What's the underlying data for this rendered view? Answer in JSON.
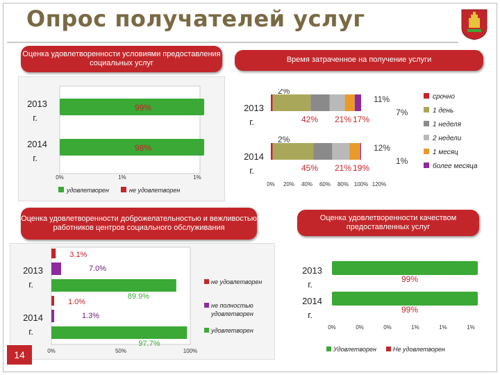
{
  "title": "Опрос получателей услуг",
  "page_number": "14",
  "colors": {
    "header": "#c3262a",
    "green": "#3aa935",
    "red": "#c3262a",
    "purple": "#8e2aa0",
    "gray": "#8a8a8a",
    "olive": "#a9a85a",
    "orange": "#e89a2a",
    "title": "#7a6a44"
  },
  "panels": {
    "conditions": {
      "header": "Оценка удовлетворенности условиями предоставления социальных услуг"
    },
    "time": {
      "header": "Время затраченное на получение услуги"
    },
    "politeness": {
      "header": "Оценка удовлетворенности доброжелательностью и вежливостью работников центров социального обслуживания"
    },
    "quality": {
      "header": "Оценка удовлетворенности качеством предоставленных услуг"
    }
  },
  "chart_data": [
    {
      "type": "bar",
      "orientation": "horizontal",
      "title": "Оценка удовлетворенности условиями предоставления социальных услуг",
      "categories": [
        "2013 г.",
        "2014 г."
      ],
      "series": [
        {
          "name": "удовлетворен",
          "color": "#3aa935",
          "values": [
            "99%",
            "98%"
          ]
        },
        {
          "name": "не удовлетворен",
          "color": "#c3262a",
          "values": [
            "",
            ""
          ]
        }
      ],
      "tick_labels": [
        "0%",
        "1%",
        "1%"
      ],
      "legend": [
        "удовлетворен",
        "не удовлетворен"
      ]
    },
    {
      "type": "bar",
      "orientation": "horizontal-stacked",
      "title": "Время затраченное на получение услуги",
      "categories": [
        "2013 г.",
        "2014 г."
      ],
      "series": [
        {
          "name": "срочно",
          "color": "#c3262a",
          "labels": [
            "2%",
            "2%"
          ]
        },
        {
          "name": "1 день",
          "color": "#a9a85a",
          "labels": [
            "42%",
            "45%"
          ]
        },
        {
          "name": "1 неделя",
          "color": "#8a8a8a",
          "labels": [
            "21%",
            "21%"
          ]
        },
        {
          "name": "2 недели",
          "color": "#b9b9b9",
          "labels": [
            "17%",
            "19%"
          ]
        },
        {
          "name": "1 месяц",
          "color": "#e89a2a",
          "labels": [
            "11%",
            "12%"
          ]
        },
        {
          "name": "более месяца",
          "color": "#8e2aa0",
          "labels": [
            "7%",
            "1%"
          ]
        }
      ],
      "values": [
        [
          2,
          42,
          21,
          17,
          11,
          7
        ],
        [
          2,
          45,
          21,
          19,
          12,
          1
        ]
      ],
      "tick_labels": [
        "0%",
        "20%",
        "40%",
        "60%",
        "80%",
        "100%",
        "120%"
      ],
      "legend": [
        "срочно",
        "1 день",
        "1 неделя",
        "2 недели",
        "1 месяц",
        "более месяца"
      ]
    },
    {
      "type": "bar",
      "orientation": "horizontal-grouped",
      "title": "Оценка удовлетворенности доброжелательностью и вежливостью работников центров социального обслуживания",
      "categories": [
        "2013 г.",
        "2014 г."
      ],
      "series": [
        {
          "name": "не удовлетворен",
          "color": "#c3262a",
          "values": [
            3.1,
            1.0
          ],
          "labels": [
            "3.1%",
            "1.0%"
          ]
        },
        {
          "name": "не полностью удовлетворен",
          "color": "#8e2aa0",
          "values": [
            7.0,
            1.3
          ],
          "labels": [
            "7.0%",
            "1.3%"
          ]
        },
        {
          "name": "удовлетворен",
          "color": "#3aa935",
          "values": [
            89.9,
            97.7
          ],
          "labels": [
            "89.9%",
            "97.7%"
          ]
        }
      ],
      "xlim": [
        0,
        100
      ],
      "tick_labels": [
        "0%",
        "50%",
        "100%"
      ],
      "legend": [
        "не удовлетворен",
        "не полностью удовлетворен",
        "удовлетворен"
      ]
    },
    {
      "type": "bar",
      "orientation": "horizontal",
      "title": "Оценка удовлетворенности качеством предоставленных услуг",
      "categories": [
        "2013 г.",
        "2014 г."
      ],
      "series": [
        {
          "name": "Удовлетворен",
          "color": "#3aa935",
          "values": [
            "99%",
            "99%"
          ]
        },
        {
          "name": "Не удовлетворен",
          "color": "#c3262a",
          "values": [
            "",
            ""
          ]
        }
      ],
      "tick_labels": [
        "0%",
        "0%",
        "0%",
        "1%",
        "1%",
        "1%"
      ],
      "legend": [
        "Удовлетворен",
        "Не удовлетворен"
      ]
    }
  ]
}
